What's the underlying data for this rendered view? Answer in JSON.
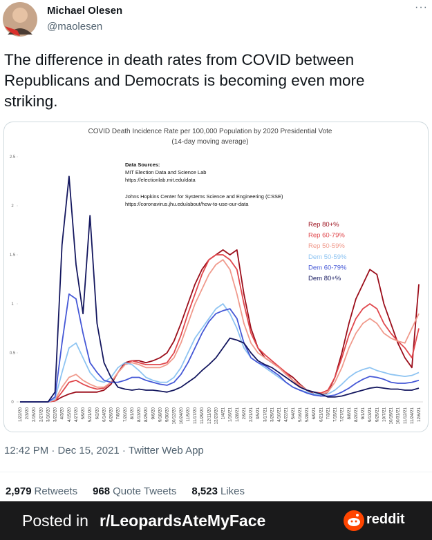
{
  "user": {
    "name": "Michael Olesen",
    "handle": "@maolesen"
  },
  "tweet": {
    "text": "The difference in death rates from COVID between Republicans and Democrats is becoming even more striking.",
    "timestamp": "12:42 PM · Dec 15, 2021 · Twitter Web App"
  },
  "stats": [
    {
      "count": "2,979",
      "label": "Retweets"
    },
    {
      "count": "968",
      "label": "Quote Tweets"
    },
    {
      "count": "8,523",
      "label": "Likes"
    }
  ],
  "footer": {
    "prefix": "Posted in",
    "subreddit": "r/LeopardsAteMyFace",
    "brand": "reddit"
  },
  "chart_data": {
    "type": "line",
    "title": "COVID Death Incidence Rate per 100,000 Population by 2020 Presidential Vote",
    "subtitle": "(14-day moving average)",
    "sources": {
      "heading": "Data Sources:",
      "entries": [
        {
          "name": "MIT Election Data and Science Lab",
          "url": "https://electionlab.mit.edu/data"
        },
        {
          "name": "Johns Hopkins Center for Systems Science and Engineering (CSSE)",
          "url": "https://coronavirus.jhu.edu/about/how-to-use-our-data"
        }
      ]
    },
    "categories": [
      "1/22/20",
      "2/3/20",
      "2/15/20",
      "2/27/20",
      "3/10/20",
      "3/22/20",
      "4/3/20",
      "4/15/20",
      "4/27/20",
      "5/9/20",
      "5/21/20",
      "6/2/20",
      "6/14/20",
      "6/26/20",
      "7/8/20",
      "7/20/20",
      "8/1/20",
      "8/13/20",
      "8/25/20",
      "9/6/20",
      "9/18/20",
      "9/30/20",
      "10/12/20",
      "10/24/20",
      "11/5/20",
      "11/17/20",
      "11/29/20",
      "12/11/20",
      "12/23/20",
      "1/4/21",
      "1/16/21",
      "1/28/21",
      "2/9/21",
      "2/21/21",
      "3/5/21",
      "3/17/21",
      "3/29/21",
      "4/10/21",
      "4/22/21",
      "5/4/21",
      "5/16/21",
      "5/28/21",
      "6/9/21",
      "6/21/21",
      "7/3/21",
      "7/15/21",
      "7/27/21",
      "8/8/21",
      "8/20/21",
      "9/1/21",
      "9/13/21",
      "9/25/21",
      "10/7/21",
      "10/19/21",
      "10/31/21",
      "11/12/21",
      "11/24/21",
      "12/6/21"
    ],
    "series": [
      {
        "name": "Rep 80+%",
        "color": "#9b0d1a",
        "values": [
          0,
          0,
          0,
          0,
          0,
          0.01,
          0.05,
          0.08,
          0.1,
          0.1,
          0.1,
          0.1,
          0.12,
          0.18,
          0.3,
          0.4,
          0.42,
          0.42,
          0.4,
          0.42,
          0.45,
          0.5,
          0.62,
          0.8,
          1.0,
          1.2,
          1.35,
          1.45,
          1.5,
          1.55,
          1.5,
          1.55,
          1.1,
          0.75,
          0.55,
          0.45,
          0.4,
          0.35,
          0.3,
          0.25,
          0.18,
          0.12,
          0.08,
          0.06,
          0.1,
          0.25,
          0.5,
          0.8,
          1.05,
          1.2,
          1.35,
          1.3,
          1.0,
          0.8,
          0.6,
          0.45,
          0.35,
          1.2
        ]
      },
      {
        "name": "Rep 60-79%",
        "color": "#e0474c",
        "values": [
          0,
          0,
          0,
          0,
          0,
          0.01,
          0.1,
          0.2,
          0.22,
          0.18,
          0.15,
          0.13,
          0.14,
          0.2,
          0.3,
          0.38,
          0.42,
          0.4,
          0.38,
          0.38,
          0.38,
          0.4,
          0.5,
          0.68,
          0.9,
          1.1,
          1.3,
          1.45,
          1.5,
          1.5,
          1.45,
          1.35,
          1.0,
          0.7,
          0.55,
          0.48,
          0.42,
          0.36,
          0.3,
          0.22,
          0.16,
          0.12,
          0.1,
          0.09,
          0.12,
          0.25,
          0.45,
          0.68,
          0.85,
          0.95,
          1.0,
          0.95,
          0.8,
          0.7,
          0.62,
          0.55,
          0.45,
          0.75
        ]
      },
      {
        "name": "Rep 50-59%",
        "color": "#f09a8c",
        "values": [
          0,
          0,
          0,
          0,
          0,
          0.02,
          0.15,
          0.25,
          0.28,
          0.22,
          0.18,
          0.15,
          0.15,
          0.2,
          0.3,
          0.38,
          0.4,
          0.38,
          0.35,
          0.35,
          0.35,
          0.38,
          0.45,
          0.6,
          0.8,
          1.0,
          1.15,
          1.3,
          1.4,
          1.45,
          1.35,
          1.1,
          0.8,
          0.6,
          0.5,
          0.45,
          0.4,
          0.35,
          0.28,
          0.22,
          0.17,
          0.12,
          0.1,
          0.08,
          0.1,
          0.2,
          0.35,
          0.55,
          0.7,
          0.8,
          0.85,
          0.8,
          0.7,
          0.65,
          0.62,
          0.6,
          0.75,
          0.9
        ]
      },
      {
        "name": "Dem 50-59%",
        "color": "#8ec4f2",
        "values": [
          0,
          0,
          0,
          0,
          0,
          0.03,
          0.3,
          0.55,
          0.6,
          0.45,
          0.3,
          0.22,
          0.2,
          0.25,
          0.35,
          0.4,
          0.38,
          0.32,
          0.25,
          0.22,
          0.2,
          0.2,
          0.25,
          0.35,
          0.5,
          0.65,
          0.75,
          0.85,
          0.95,
          1.0,
          0.9,
          0.75,
          0.55,
          0.45,
          0.4,
          0.35,
          0.3,
          0.25,
          0.2,
          0.15,
          0.12,
          0.1,
          0.08,
          0.07,
          0.08,
          0.12,
          0.18,
          0.25,
          0.3,
          0.33,
          0.35,
          0.32,
          0.3,
          0.28,
          0.27,
          0.26,
          0.27,
          0.3
        ]
      },
      {
        "name": "Dem 60-79%",
        "color": "#4457d6",
        "values": [
          0,
          0,
          0,
          0,
          0,
          0.05,
          0.6,
          1.1,
          1.05,
          0.7,
          0.4,
          0.3,
          0.22,
          0.2,
          0.2,
          0.22,
          0.25,
          0.25,
          0.22,
          0.2,
          0.18,
          0.17,
          0.2,
          0.28,
          0.4,
          0.55,
          0.7,
          0.82,
          0.9,
          0.93,
          0.95,
          0.85,
          0.6,
          0.45,
          0.4,
          0.37,
          0.32,
          0.27,
          0.2,
          0.15,
          0.12,
          0.09,
          0.07,
          0.06,
          0.06,
          0.07,
          0.1,
          0.14,
          0.19,
          0.23,
          0.26,
          0.25,
          0.23,
          0.2,
          0.19,
          0.19,
          0.2,
          0.22
        ]
      },
      {
        "name": "Dem 80+%",
        "color": "#13165e",
        "values": [
          0,
          0,
          0,
          0,
          0,
          0.1,
          1.6,
          2.3,
          1.4,
          0.9,
          1.9,
          0.8,
          0.4,
          0.25,
          0.15,
          0.13,
          0.12,
          0.13,
          0.12,
          0.12,
          0.11,
          0.1,
          0.12,
          0.15,
          0.2,
          0.25,
          0.32,
          0.38,
          0.45,
          0.55,
          0.65,
          0.63,
          0.6,
          0.5,
          0.42,
          0.38,
          0.35,
          0.3,
          0.25,
          0.2,
          0.15,
          0.12,
          0.1,
          0.08,
          0.05,
          0.05,
          0.06,
          0.08,
          0.1,
          0.12,
          0.14,
          0.15,
          0.14,
          0.13,
          0.13,
          0.12,
          0.12,
          0.14
        ]
      }
    ],
    "ylim": [
      0,
      2.5
    ],
    "yticks": [
      0,
      0.5,
      1,
      1.5,
      2,
      2.5
    ]
  }
}
